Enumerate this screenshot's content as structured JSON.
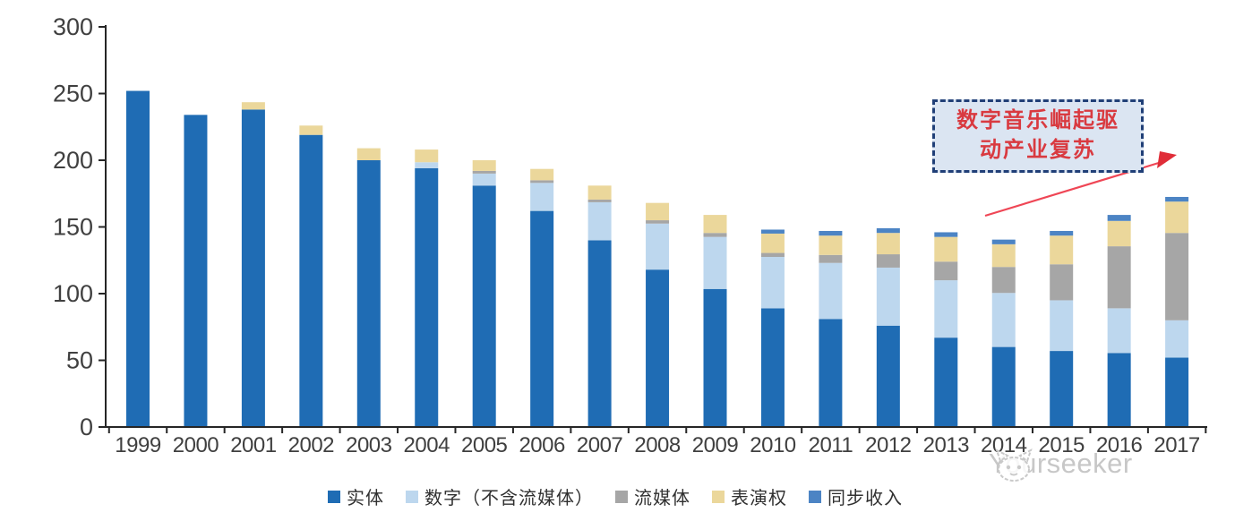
{
  "chart_data": {
    "type": "bar",
    "stacked": true,
    "categories": [
      "1999",
      "2000",
      "2001",
      "2002",
      "2003",
      "2004",
      "2005",
      "2006",
      "2007",
      "2008",
      "2009",
      "2010",
      "2011",
      "2012",
      "2013",
      "2014",
      "2015",
      "2016",
      "2017"
    ],
    "series": [
      {
        "name": "实体",
        "color": "#1F6CB4",
        "values": [
          252,
          234,
          238,
          219,
          200,
          194,
          181,
          162,
          140,
          118,
          103.5,
          89,
          81,
          76,
          67,
          60,
          57,
          55.5,
          52
        ]
      },
      {
        "name": "数字（不含流媒体）",
        "color": "#BDD7EE",
        "values": [
          0,
          0,
          0,
          0,
          0,
          4.5,
          9,
          21,
          28.5,
          34.5,
          39,
          38.5,
          42,
          43.5,
          43,
          40.5,
          38,
          33.5,
          28
        ]
      },
      {
        "name": "流媒体",
        "color": "#A6A6A6",
        "values": [
          0,
          0,
          0,
          0,
          0,
          0,
          2,
          2,
          2,
          2.5,
          3,
          3,
          6,
          10,
          14,
          19.5,
          27,
          46.5,
          65.5
        ]
      },
      {
        "name": "表演权",
        "color": "#EBD79B",
        "values": [
          0,
          0,
          5.5,
          7,
          9,
          9.5,
          8,
          8.5,
          10.5,
          13,
          13.5,
          14.5,
          14.5,
          16,
          18.5,
          17,
          21.5,
          19,
          23.5
        ]
      },
      {
        "name": "同步收入",
        "color": "#4C84C4",
        "values": [
          0,
          0,
          0,
          0,
          0,
          0,
          0,
          0,
          0,
          0,
          0,
          3,
          3.5,
          3.5,
          3.5,
          3.5,
          3.5,
          4.5,
          3.5
        ]
      }
    ],
    "ylim": [
      0,
      300
    ],
    "yticks": [
      0,
      50,
      100,
      150,
      200,
      250,
      300
    ],
    "xlabel": "",
    "ylabel": "",
    "title": "",
    "grid": false,
    "legend_position": "bottom"
  },
  "annotation": {
    "lines": [
      "数字音乐崛起驱",
      "动产业复苏"
    ]
  },
  "watermark": {
    "text": "Yourseeker"
  },
  "colors": {
    "axis": "#262626",
    "tick_label": "#404040",
    "annotation_border": "#203f77",
    "annotation_fill": "#dbe5f2",
    "annotation_text": "#d93a40",
    "arrow": "#e8414b",
    "watermark": "#c7c7c7"
  }
}
